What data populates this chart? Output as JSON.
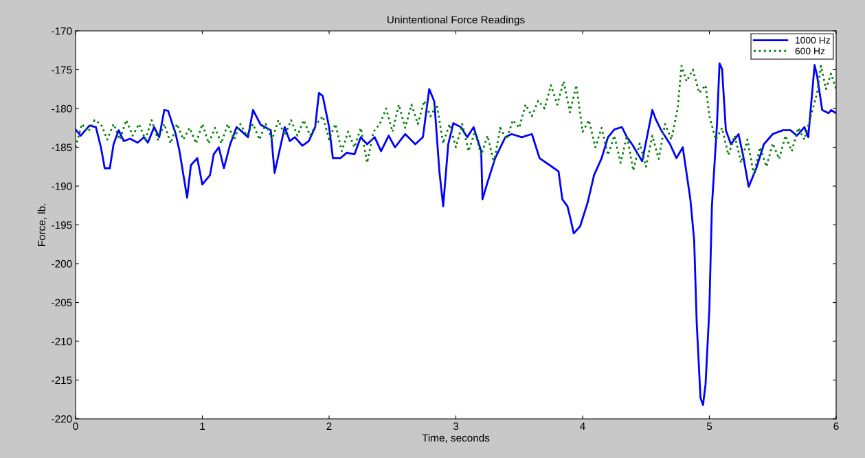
{
  "chart_data": {
    "type": "line",
    "title": "Unintentional Force Readings",
    "xlabel": "Time, seconds",
    "ylabel": "Force, lb.",
    "xlim": [
      0,
      6
    ],
    "xticks": [
      0,
      1,
      2,
      3,
      4,
      5,
      6
    ],
    "ylim": [
      -220,
      -170
    ],
    "yticks": [
      -220,
      -215,
      -210,
      -205,
      -200,
      -195,
      -190,
      -185,
      -180,
      -175,
      -170
    ],
    "grid": false,
    "legend": "top right",
    "series": [
      {
        "name": "1000 Hz",
        "color": "#0000ff",
        "line_style": "solid",
        "x": [
          0,
          0.04,
          0.11,
          0.16,
          0.2,
          0.23,
          0.27,
          0.3,
          0.34,
          0.38,
          0.43,
          0.49,
          0.54,
          0.57,
          0.62,
          0.66,
          0.7,
          0.73,
          0.79,
          0.82,
          0.88,
          0.91,
          0.96,
          1.0,
          1.06,
          1.09,
          1.13,
          1.17,
          1.22,
          1.27,
          1.3,
          1.36,
          1.4,
          1.46,
          1.54,
          1.57,
          1.62,
          1.65,
          1.69,
          1.73,
          1.79,
          1.84,
          1.89,
          1.92,
          1.95,
          2.0,
          2.03,
          2.09,
          2.14,
          2.2,
          2.25,
          2.3,
          2.36,
          2.41,
          2.47,
          2.52,
          2.6,
          2.68,
          2.74,
          2.79,
          2.83,
          2.87,
          2.9,
          2.94,
          2.98,
          3.04,
          3.09,
          3.14,
          3.2,
          3.21,
          3.25,
          3.31,
          3.39,
          3.44,
          3.52,
          3.6,
          3.66,
          3.74,
          3.81,
          3.84,
          3.88,
          3.9,
          3.93,
          3.98,
          4.04,
          4.09,
          4.15,
          4.2,
          4.25,
          4.31,
          4.35,
          4.39,
          4.47,
          4.55,
          4.58,
          4.62,
          4.69,
          4.74,
          4.79,
          4.85,
          4.88,
          4.9,
          4.93,
          4.95,
          4.97,
          5.0,
          5.02,
          5.06,
          5.08,
          5.1,
          5.13,
          5.17,
          5.23,
          5.27,
          5.31,
          5.37,
          5.43,
          5.5,
          5.58,
          5.64,
          5.69,
          5.75,
          5.78,
          5.83,
          5.85,
          5.89,
          5.94,
          5.96,
          6.0
        ],
        "values": [
          -182.7,
          -183.5,
          -182.2,
          -182.4,
          -185,
          -187.7,
          -187.7,
          -184.6,
          -182.8,
          -184.2,
          -183.9,
          -184.4,
          -183.7,
          -184.4,
          -182.4,
          -183.7,
          -180.2,
          -180.3,
          -183.3,
          -185.5,
          -191.5,
          -187.3,
          -186.4,
          -189.8,
          -188.6,
          -185.9,
          -185,
          -187.7,
          -184.6,
          -182.4,
          -182.8,
          -183.7,
          -180.2,
          -182.1,
          -182.8,
          -188.3,
          -184.6,
          -182.4,
          -184.2,
          -183.7,
          -184.8,
          -184.2,
          -182.4,
          -178,
          -178.4,
          -182.4,
          -186.4,
          -186.4,
          -185.7,
          -185.9,
          -183.7,
          -184.6,
          -183.7,
          -185.5,
          -183.5,
          -185,
          -183.3,
          -184.6,
          -183.7,
          -177.5,
          -179.1,
          -188.1,
          -192.6,
          -184.6,
          -181.9,
          -182.4,
          -183.7,
          -182.4,
          -185.5,
          -191.7,
          -189.5,
          -186.4,
          -183.7,
          -183.3,
          -183.7,
          -183.3,
          -186.4,
          -187.3,
          -188.1,
          -191.7,
          -192.6,
          -193.9,
          -196.1,
          -195.2,
          -192.1,
          -188.6,
          -186.4,
          -183.7,
          -182.7,
          -182.4,
          -183.7,
          -184.6,
          -186.8,
          -180.2,
          -181.5,
          -182.8,
          -184.6,
          -186.4,
          -185,
          -191.7,
          -197,
          -207.6,
          -217.3,
          -218.2,
          -215.5,
          -205.8,
          -192.6,
          -182,
          -174.2,
          -174.9,
          -182.8,
          -184.6,
          -183.3,
          -186.4,
          -190.1,
          -187.7,
          -184.6,
          -183.3,
          -182.8,
          -182.8,
          -183.5,
          -182.4,
          -183.7,
          -174.4,
          -175.8,
          -180.2,
          -180.6,
          -180.2,
          -180.6
        ]
      },
      {
        "name": "600 Hz",
        "color": "#008000",
        "line_style": "dotted",
        "x": [
          0,
          0.05,
          0.1,
          0.15,
          0.2,
          0.25,
          0.3,
          0.35,
          0.4,
          0.45,
          0.5,
          0.55,
          0.6,
          0.65,
          0.7,
          0.75,
          0.8,
          0.85,
          0.9,
          0.95,
          1.0,
          1.05,
          1.1,
          1.15,
          1.2,
          1.25,
          1.3,
          1.35,
          1.4,
          1.45,
          1.5,
          1.55,
          1.6,
          1.65,
          1.7,
          1.75,
          1.8,
          1.85,
          1.9,
          1.95,
          2.0,
          2.05,
          2.1,
          2.15,
          2.2,
          2.25,
          2.3,
          2.35,
          2.4,
          2.45,
          2.5,
          2.55,
          2.6,
          2.65,
          2.7,
          2.75,
          2.8,
          2.85,
          2.9,
          2.95,
          3.0,
          3.05,
          3.1,
          3.15,
          3.2,
          3.25,
          3.3,
          3.35,
          3.4,
          3.45,
          3.5,
          3.55,
          3.6,
          3.65,
          3.7,
          3.75,
          3.8,
          3.85,
          3.9,
          3.95,
          4.0,
          4.05,
          4.1,
          4.15,
          4.2,
          4.25,
          4.3,
          4.35,
          4.4,
          4.45,
          4.5,
          4.55,
          4.6,
          4.65,
          4.7,
          4.75,
          4.78,
          4.82,
          4.87,
          4.92,
          4.97,
          5.0,
          5.05,
          5.1,
          5.15,
          5.2,
          5.25,
          5.3,
          5.35,
          5.4,
          5.45,
          5.5,
          5.55,
          5.6,
          5.65,
          5.7,
          5.75,
          5.8,
          5.85,
          5.88,
          5.92,
          5.96,
          6.0
        ],
        "values": [
          -185,
          -182,
          -183,
          -181.5,
          -182,
          -184,
          -182,
          -184,
          -181.5,
          -183.5,
          -182,
          -184,
          -181.5,
          -184,
          -182,
          -184.5,
          -182,
          -184,
          -182.5,
          -184.5,
          -182,
          -184.5,
          -182.5,
          -184.5,
          -182,
          -184,
          -182,
          -183.5,
          -182,
          -184,
          -182,
          -184,
          -181.5,
          -183.5,
          -181.5,
          -183.5,
          -181.5,
          -183.5,
          -182,
          -181,
          -184,
          -182,
          -185.5,
          -183,
          -185,
          -182.5,
          -187,
          -183,
          -182,
          -180,
          -183,
          -179.5,
          -182.5,
          -179.5,
          -182,
          -179,
          -181,
          -179.5,
          -184.5,
          -182,
          -185,
          -182,
          -185.5,
          -183,
          -186,
          -183.5,
          -187,
          -182.5,
          -184,
          -181.5,
          -182.5,
          -179.5,
          -181,
          -179,
          -180,
          -177,
          -179.5,
          -176.5,
          -180.5,
          -177,
          -183,
          -181.5,
          -185,
          -182.5,
          -186,
          -183.5,
          -187,
          -183.5,
          -188,
          -184.5,
          -187.5,
          -183.5,
          -186.5,
          -182,
          -184,
          -180,
          -174.5,
          -176.5,
          -175,
          -178,
          -177,
          -181,
          -184,
          -182.5,
          -186,
          -183.5,
          -187,
          -184,
          -188.5,
          -185,
          -187.5,
          -184.5,
          -186.5,
          -183.5,
          -185.5,
          -182.5,
          -184,
          -181,
          -178,
          -174.5,
          -177.5,
          -175.5,
          -177.5
        ]
      }
    ]
  }
}
